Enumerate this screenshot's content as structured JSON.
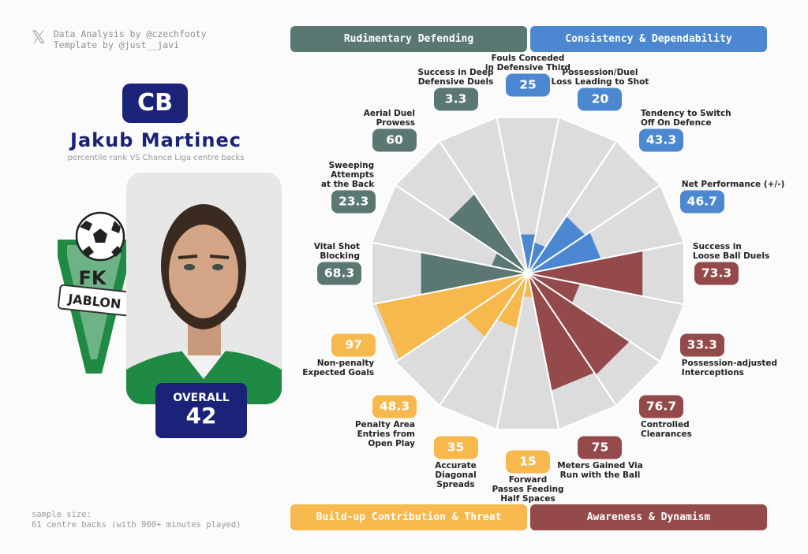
{
  "credits": {
    "line1": "Data Analysis by @czechfooty",
    "line2": "Template by @just__javi"
  },
  "player": {
    "position": "CB",
    "name": "Jakub Martinec",
    "subtitle": "percentile rank VS Chance Liga centre backs",
    "overall_label": "OVERALL",
    "overall_value": "42",
    "club_crest": "FK Jablonec crest"
  },
  "sample": {
    "line1": "sample size:",
    "line2": "61 centre backs (with 900+ minutes played)"
  },
  "colors": {
    "rudimentary": "#5b7772",
    "consistency": "#4c88d1",
    "buildup": "#f7b84d",
    "awareness": "#944a4a",
    "navy": "#1b2378"
  },
  "categories": {
    "rudimentary": "Rudimentary Defending",
    "consistency": "Consistency & Dependability",
    "buildup": "Build-up Contribution & Threat",
    "awareness": "Awareness & Dynamism"
  },
  "chart_data": {
    "type": "radar",
    "rlim": [
      0,
      100
    ],
    "metrics": [
      {
        "label": "Fouls Conceded\nin Defensive Third",
        "value": 25,
        "group": "consistency"
      },
      {
        "label": "Possession/Duel\nLoss Leading to Shot",
        "value": 20,
        "group": "consistency"
      },
      {
        "label": "Tendency to Switch\nOff On Defence",
        "value": 43.3,
        "group": "consistency"
      },
      {
        "label": "Net Performance (+/-)",
        "value": 46.7,
        "group": "consistency"
      },
      {
        "label": "Success in\nLoose Ball Duels",
        "value": 73.3,
        "group": "awareness"
      },
      {
        "label": "Possession-adjusted\nInterceptions",
        "value": 33.3,
        "group": "awareness"
      },
      {
        "label": "Controlled\nClearances",
        "value": 76.7,
        "group": "awareness"
      },
      {
        "label": "Meters Gained Via\nRun with the Ball",
        "value": 75,
        "group": "awareness"
      },
      {
        "label": "Forward\nPasses Feeding\nHalf Spaces",
        "value": 15,
        "group": "buildup"
      },
      {
        "label": "Accurate\nDiagonal\nSpreads",
        "value": 35,
        "group": "buildup"
      },
      {
        "label": "Penalty Area\nEntries from\nOpen Play",
        "value": 48.3,
        "group": "buildup"
      },
      {
        "label": "Non-penalty\nExpected Goals",
        "value": 97,
        "group": "buildup"
      },
      {
        "label": "Vital Shot\nBlocking",
        "value": 68.3,
        "group": "rudimentary"
      },
      {
        "label": "Sweeping\nAttempts\nat the Back",
        "value": 23.3,
        "group": "rudimentary"
      },
      {
        "label": "Aerial Duel\nProwess",
        "value": 60,
        "group": "rudimentary"
      },
      {
        "label": "Success in Deep\nDefensive Duels",
        "value": 3.3,
        "group": "rudimentary"
      }
    ]
  }
}
